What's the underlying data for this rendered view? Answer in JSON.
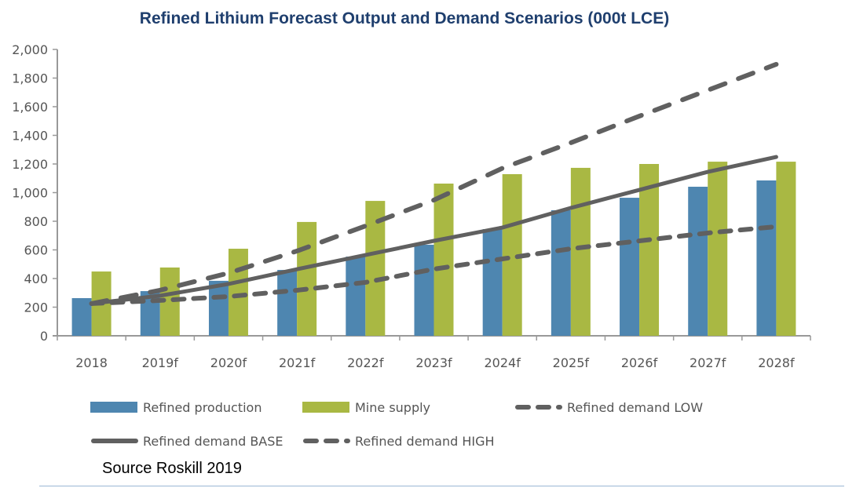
{
  "chart_data": {
    "type": "bar",
    "title": "Refined Lithium Forecast Output and Demand Scenarios (000t LCE)",
    "categories": [
      "2018",
      "2019f",
      "2020f",
      "2021f",
      "2022f",
      "2023f",
      "2024f",
      "2025f",
      "2026f",
      "2027f",
      "2028f"
    ],
    "ylim": [
      0,
      2000
    ],
    "yticks": [
      0,
      200,
      400,
      600,
      800,
      1000,
      1200,
      1400,
      1600,
      1800,
      2000
    ],
    "ytick_labels": [
      "0",
      "200",
      "400",
      "600",
      "800",
      "1,000",
      "1,200",
      "1,400",
      "1,600",
      "1,800",
      "2,000"
    ],
    "grid": false,
    "legend_placement": "bottom",
    "series": [
      {
        "name": "Refined production",
        "kind": "bar",
        "color": "#4e86b0",
        "values": [
          263,
          312,
          384,
          460,
          553,
          636,
          745,
          877,
          964,
          1041,
          1085
        ]
      },
      {
        "name": "Mine supply",
        "kind": "bar",
        "color": "#a9b843",
        "values": [
          449,
          477,
          608,
          795,
          942,
          1063,
          1129,
          1173,
          1200,
          1216,
          1216
        ]
      },
      {
        "name": "Refined demand LOW",
        "kind": "line",
        "style": "dashed",
        "color": "#606060",
        "values": [
          225,
          247,
          274,
          318,
          373,
          466,
          537,
          608,
          663,
          718,
          762
        ]
      },
      {
        "name": "Refined demand BASE",
        "kind": "line",
        "style": "solid",
        "color": "#606060",
        "values": [
          225,
          280,
          362,
          465,
          564,
          663,
          756,
          893,
          1019,
          1145,
          1249
        ]
      },
      {
        "name": "Refined demand HIGH",
        "kind": "line",
        "style": "dashed",
        "color": "#606060",
        "values": [
          225,
          318,
          438,
          592,
          767,
          948,
          1170,
          1348,
          1534,
          1715,
          1896
        ]
      }
    ]
  },
  "source": "Source Roskill 2019"
}
